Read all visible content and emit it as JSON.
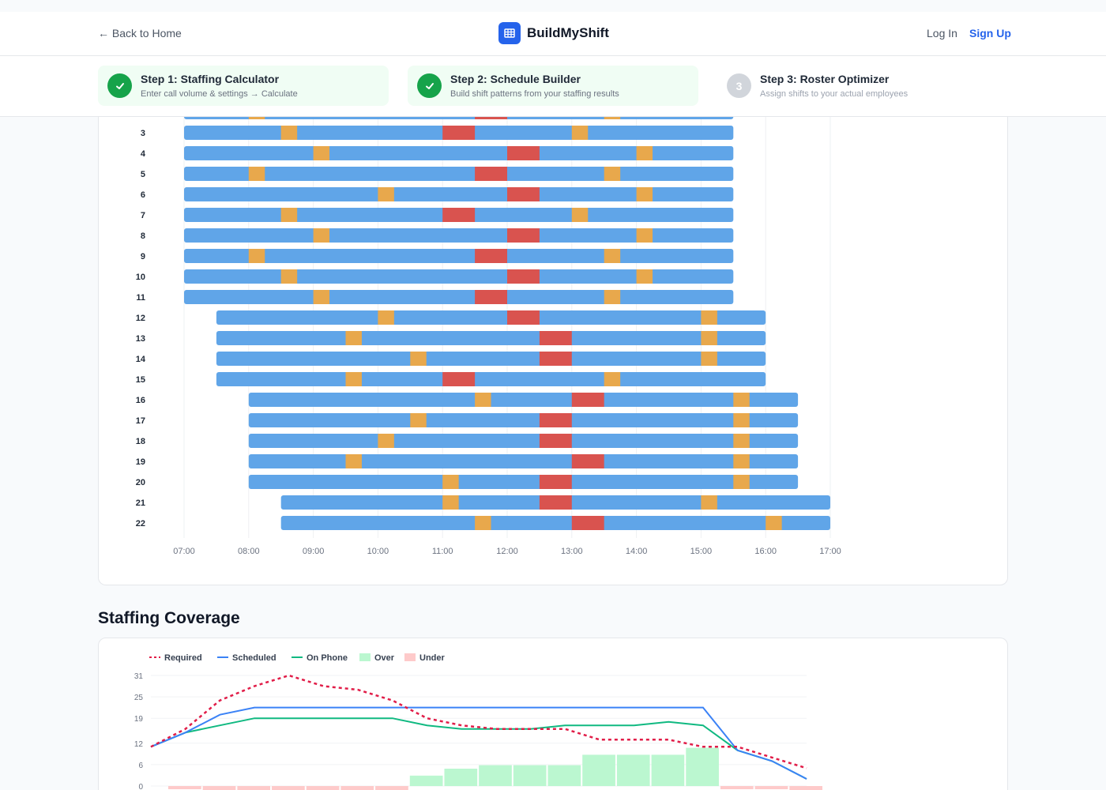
{
  "nav": {
    "back_label": "← Back to Home",
    "brand": "BuildMyShift",
    "login": "Log In",
    "signup": "Sign Up"
  },
  "steps": [
    {
      "title": "Step 1: Staffing Calculator",
      "subtitle": "Enter call volume & settings → Calculate",
      "status": "done"
    },
    {
      "title": "Step 2: Schedule Builder",
      "subtitle": "Build shift patterns from your staffing results",
      "status": "done"
    },
    {
      "title": "Step 3: Roster Optimizer",
      "subtitle": "Assign shifts to your actual employees",
      "status": "todo",
      "number": "3"
    }
  ],
  "colors": {
    "shift": "#60a5e8",
    "break": "#e8a84c",
    "lunch": "#d9534f",
    "required": "#e11d48",
    "scheduled": "#3b82f6",
    "on_phone": "#10b981",
    "over": "#bbf7d0",
    "under": "#fecaca"
  },
  "schedule": {
    "time_ticks": [
      "07:00",
      "08:00",
      "09:00",
      "10:00",
      "11:00",
      "12:00",
      "13:00",
      "14:00",
      "15:00",
      "16:00",
      "17:00"
    ],
    "agents": [
      {
        "label": "3",
        "start": 7.0,
        "end": 15.5,
        "breaks": [
          8.5,
          13.0
        ],
        "lunch": 11.0
      },
      {
        "label": "4",
        "start": 7.0,
        "end": 15.5,
        "breaks": [
          9.0,
          14.0
        ],
        "lunch": 12.0
      },
      {
        "label": "5",
        "start": 7.0,
        "end": 15.5,
        "breaks": [
          8.0,
          13.5
        ],
        "lunch": 11.5
      },
      {
        "label": "6",
        "start": 7.0,
        "end": 15.5,
        "breaks": [
          10.0,
          14.0
        ],
        "lunch": 12.0
      },
      {
        "label": "7",
        "start": 7.0,
        "end": 15.5,
        "breaks": [
          8.5,
          13.0
        ],
        "lunch": 11.0
      },
      {
        "label": "8",
        "start": 7.0,
        "end": 15.5,
        "breaks": [
          9.0,
          14.0
        ],
        "lunch": 12.0
      },
      {
        "label": "9",
        "start": 7.0,
        "end": 15.5,
        "breaks": [
          8.0,
          13.5
        ],
        "lunch": 11.5
      },
      {
        "label": "10",
        "start": 7.0,
        "end": 15.5,
        "breaks": [
          8.5,
          14.0
        ],
        "lunch": 12.0
      },
      {
        "label": "11",
        "start": 7.0,
        "end": 15.5,
        "breaks": [
          9.0,
          13.5
        ],
        "lunch": 11.5
      },
      {
        "label": "12",
        "start": 7.5,
        "end": 16.0,
        "breaks": [
          10.0,
          15.0
        ],
        "lunch": 12.0
      },
      {
        "label": "13",
        "start": 7.5,
        "end": 16.0,
        "breaks": [
          9.5,
          15.0
        ],
        "lunch": 12.5
      },
      {
        "label": "14",
        "start": 7.5,
        "end": 16.0,
        "breaks": [
          10.5,
          15.0
        ],
        "lunch": 12.5
      },
      {
        "label": "15",
        "start": 7.5,
        "end": 16.0,
        "breaks": [
          9.5,
          13.5
        ],
        "lunch": 11.0
      },
      {
        "label": "16",
        "start": 8.0,
        "end": 16.5,
        "breaks": [
          11.5,
          15.5
        ],
        "lunch": 13.0
      },
      {
        "label": "17",
        "start": 8.0,
        "end": 16.5,
        "breaks": [
          10.5,
          15.5
        ],
        "lunch": 12.5
      },
      {
        "label": "18",
        "start": 8.0,
        "end": 16.5,
        "breaks": [
          10.0,
          15.5
        ],
        "lunch": 12.5
      },
      {
        "label": "19",
        "start": 8.0,
        "end": 16.5,
        "breaks": [
          9.5,
          15.5
        ],
        "lunch": 13.0
      },
      {
        "label": "20",
        "start": 8.0,
        "end": 16.5,
        "breaks": [
          11.0,
          15.5
        ],
        "lunch": 12.5
      },
      {
        "label": "21",
        "start": 8.5,
        "end": 17.0,
        "breaks": [
          11.0,
          15.0
        ],
        "lunch": 12.5
      },
      {
        "label": "22",
        "start": 8.5,
        "end": 17.0,
        "breaks": [
          11.5,
          16.0
        ],
        "lunch": 13.0
      }
    ]
  },
  "coverage": {
    "title": "Staffing Coverage",
    "legend": [
      "Required",
      "Scheduled",
      "On Phone",
      "Over",
      "Under"
    ],
    "chart_data": {
      "type": "line",
      "y_ticks": [
        0,
        6,
        12,
        19,
        25,
        31
      ],
      "ylim": [
        0,
        31
      ],
      "series": [
        {
          "name": "Required",
          "values": [
            11,
            16,
            24,
            28,
            31,
            28,
            27,
            24,
            19,
            17,
            16,
            16,
            16,
            13,
            13,
            13,
            11,
            11,
            8,
            5
          ]
        },
        {
          "name": "Scheduled",
          "values": [
            11,
            15,
            20,
            22,
            22,
            22,
            22,
            22,
            22,
            22,
            22,
            22,
            22,
            22,
            22,
            22,
            22,
            10,
            7,
            2
          ]
        },
        {
          "name": "On Phone",
          "values": [
            11,
            15,
            17,
            19,
            19,
            19,
            19,
            19,
            17,
            16,
            16,
            16,
            17,
            17,
            17,
            18,
            17,
            10,
            7,
            2
          ]
        }
      ]
    }
  }
}
